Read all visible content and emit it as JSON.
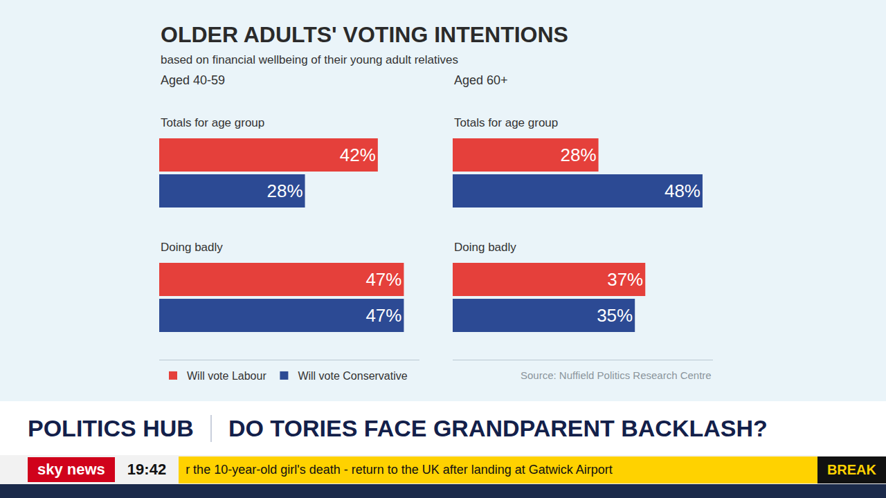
{
  "heading": {
    "title": "OLDER ADULTS' VOTING INTENTIONS",
    "subtitle": "based on financial wellbeing of their young adult relatives",
    "source": "Source: Nuffield Politics Research Centre"
  },
  "chart_data": [
    {
      "type": "bar",
      "title": "Aged 40-59",
      "orientation": "horizontal",
      "data_labels": true,
      "tick_labels": false,
      "legend": "bottom",
      "categories": [
        "Totals for age group",
        "Doing badly"
      ],
      "xlim": [
        0,
        50
      ],
      "series": [
        {
          "name": "Will vote Labour",
          "color": "#e5403b",
          "values": [
            42,
            47
          ],
          "value_labels": [
            "42%",
            "47%"
          ]
        },
        {
          "name": "Will vote Conservative",
          "color": "#2c4a94",
          "values": [
            28,
            47
          ],
          "value_labels": [
            "28%",
            "47%"
          ]
        }
      ]
    },
    {
      "type": "bar",
      "title": "Aged 60+",
      "orientation": "horizontal",
      "data_labels": true,
      "tick_labels": false,
      "categories": [
        "Totals for age group",
        "Doing badly"
      ],
      "xlim": [
        0,
        50
      ],
      "series": [
        {
          "name": "Will vote Labour",
          "color": "#e5403b",
          "values": [
            28,
            37
          ],
          "value_labels": [
            "28%",
            "37%"
          ]
        },
        {
          "name": "Will vote Conservative",
          "color": "#2c4a94",
          "values": [
            48,
            35
          ],
          "value_labels": [
            "48%",
            "35%"
          ]
        }
      ]
    }
  ],
  "banner": {
    "programme": "POLITICS HUB",
    "headline": "DO TORIES FACE GRANDPARENT BACKLASH?",
    "channel": "sky news",
    "time": "19:42",
    "ticker": "r the 10-year-old girl's death - return to the UK after landing at Gatwick Airport",
    "flash": "BREAK"
  }
}
